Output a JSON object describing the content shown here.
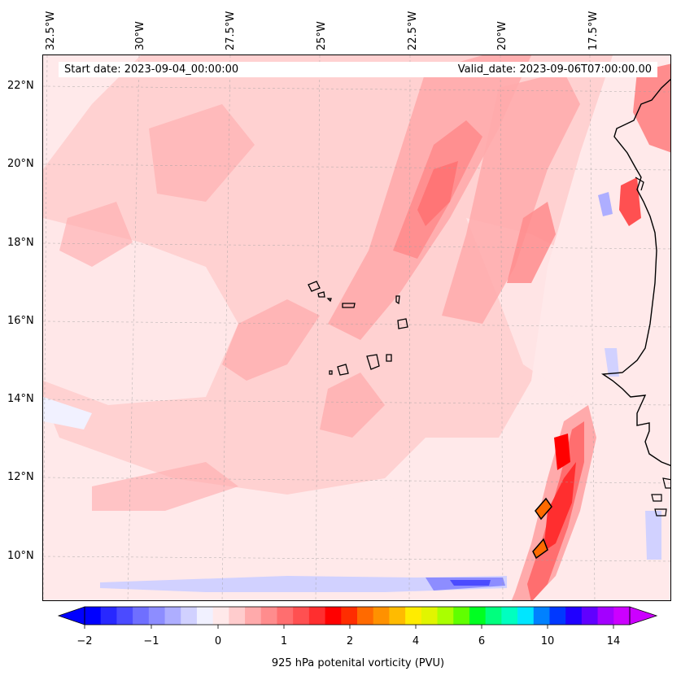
{
  "map": {
    "start_label": "Start date: 2023-09-04_00:00:00",
    "valid_label": "Valid_date: 2023-09-06T07:00:00.00",
    "lon_labels": [
      "32.5°W",
      "30°W",
      "27.5°W",
      "25°W",
      "22.5°W",
      "20°W",
      "17.5°W"
    ],
    "lat_labels": [
      "22°N",
      "20°N",
      "18°N",
      "16°N",
      "14°N",
      "12°N",
      "10°N"
    ]
  },
  "colorbar": {
    "label": "925 hPa potenital vorticity (PVU)",
    "tick_labels": [
      "−2",
      "−1",
      "0",
      "1",
      "2",
      "4",
      "6",
      "10",
      "14"
    ],
    "colors": [
      "#0000ff",
      "#2828ff",
      "#4b4bff",
      "#6f6fff",
      "#8d8dff",
      "#aeaeff",
      "#d1d1ff",
      "#f1f1ff",
      "#ffe9ea",
      "#ffcccd",
      "#ffaaab",
      "#ff8c8d",
      "#ff6e6f",
      "#ff5051",
      "#ff2e2f",
      "#ff0000",
      "#ff2d00",
      "#ff6a00",
      "#ff9100",
      "#ffbb00",
      "#ffec00",
      "#e1f500",
      "#aaff00",
      "#60ff00",
      "#00ff22",
      "#00ff7e",
      "#00ffc0",
      "#00e6ff",
      "#0081ff",
      "#0038ff",
      "#2000ff",
      "#6000ff",
      "#a300ff",
      "#cc00ff"
    ]
  }
}
